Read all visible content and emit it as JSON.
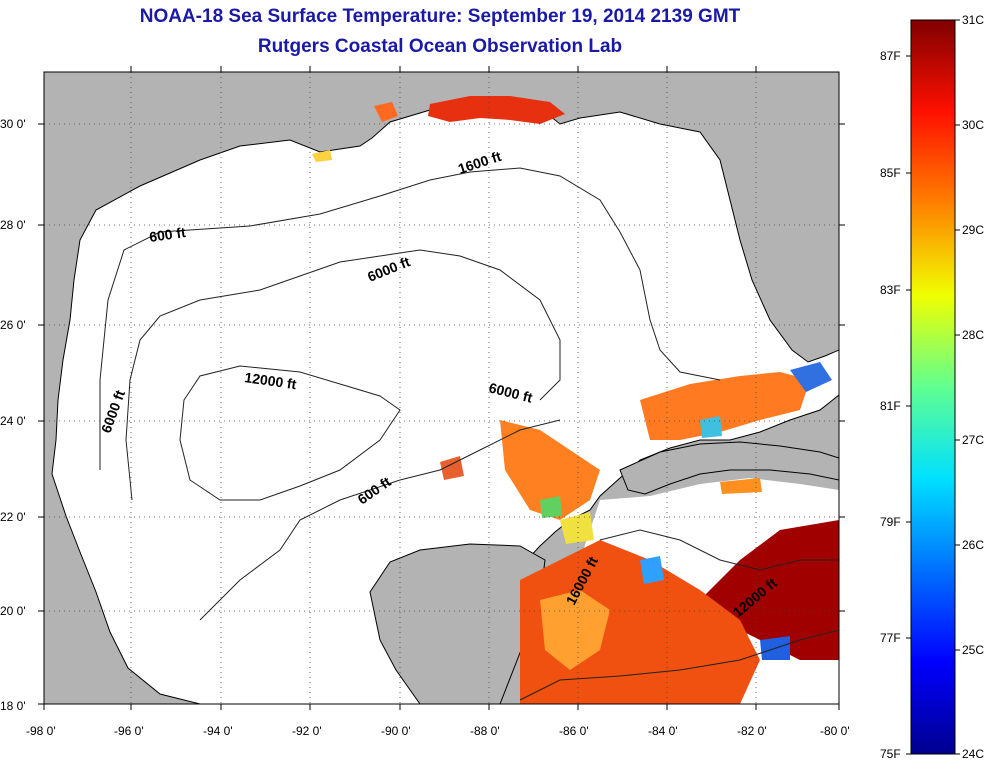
{
  "header": {
    "title": "NOAA-18 Sea Surface Temperature:  September 19, 2014 2139 GMT",
    "subtitle": "Rutgers Coastal Ocean Observation Lab"
  },
  "map": {
    "lat_ticks": [
      "30 0'",
      "28 0'",
      "26 0'",
      "24 0'",
      "22 0'",
      "20 0'",
      "18 0'"
    ],
    "lon_ticks": [
      "-98 0'",
      "-96 0'",
      "-94 0'",
      "-92 0'",
      "-90 0'",
      "-88 0'",
      "-86 0'",
      "-84 0'",
      "-82 0'",
      "-80 0'"
    ],
    "contours": [
      {
        "label": "600 ft"
      },
      {
        "label": "600 ft"
      },
      {
        "label": "6000 ft"
      },
      {
        "label": "6000 ft"
      },
      {
        "label": "12000 ft"
      },
      {
        "label": "1600 ft"
      },
      {
        "label": "6000 ft"
      },
      {
        "label": "16000 ft"
      },
      {
        "label": "12000 ft"
      }
    ]
  },
  "colorbar": {
    "fahrenheit": [
      "87F",
      "85F",
      "83F",
      "81F",
      "79F",
      "77F",
      "75F"
    ],
    "celsius": [
      "31C",
      "30C",
      "29C",
      "28C",
      "27C",
      "26C",
      "25C",
      "24C"
    ]
  },
  "colors": {
    "land": "#b3b3b3",
    "title": "#1a1aa6",
    "sst_hot": "#a00000",
    "sst_warm": "#e64010",
    "sst_mid": "#ffa020",
    "sst_cool": "#20b0ff"
  }
}
